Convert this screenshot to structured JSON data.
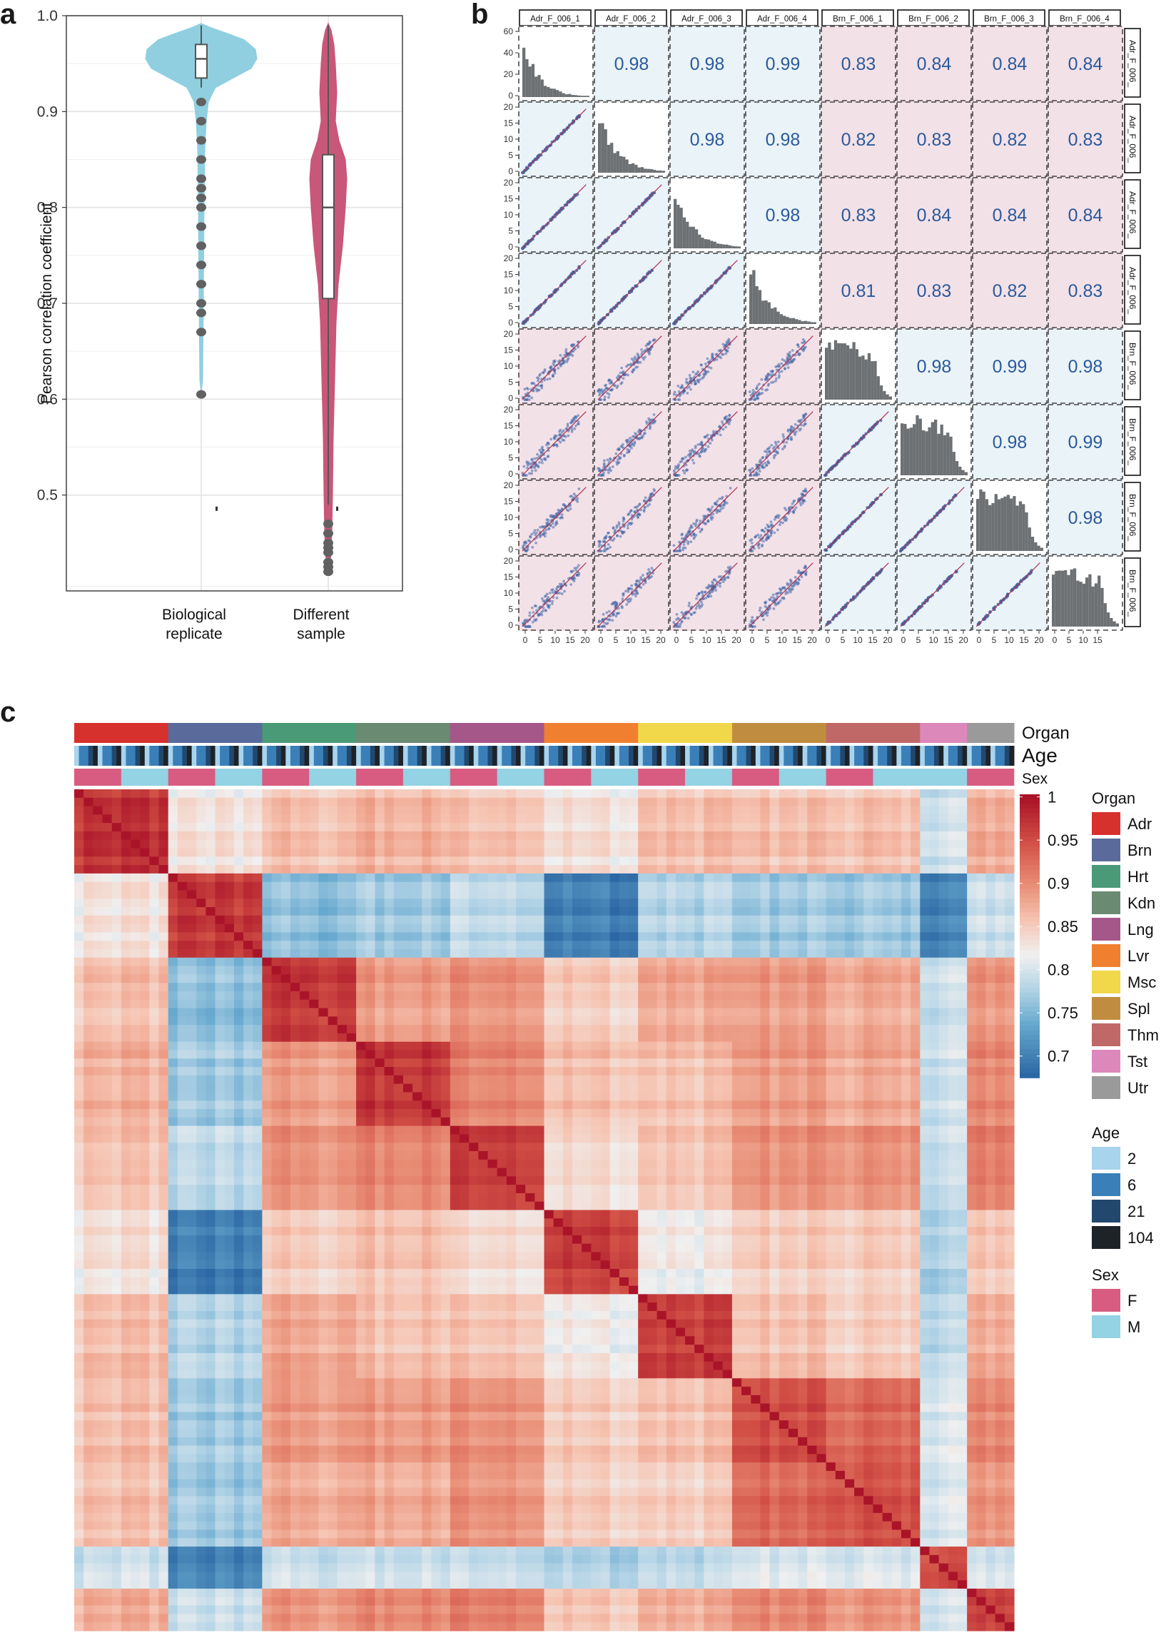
{
  "panels": {
    "a": "a",
    "b": "b",
    "c": "c"
  },
  "chart_data": [
    {
      "panel": "a",
      "type": "violin",
      "ylabel": "Pearson correlation coefficient",
      "ylim": [
        0.4,
        1.0
      ],
      "yticks": [
        "0.5",
        "0.6",
        "0.7",
        "0.8",
        "0.9",
        "1.0"
      ],
      "ytick_values": [
        0.5,
        0.6,
        0.7,
        0.8,
        0.9,
        1.0
      ],
      "grid": true,
      "categories": [
        {
          "label_line1": "Biological",
          "label_line2": "replicate",
          "color": "#8fcfe0",
          "min": 0.605,
          "q1": 0.935,
          "median": 0.955,
          "q3": 0.97,
          "max": 0.99,
          "outliers": [
            0.91,
            0.89,
            0.87,
            0.85,
            0.83,
            0.82,
            0.81,
            0.8,
            0.78,
            0.76,
            0.74,
            0.72,
            0.7,
            0.69,
            0.67,
            0.605
          ]
        },
        {
          "label_line1": "Different",
          "label_line2": "sample",
          "color": "#c9577a",
          "min": 0.42,
          "q1": 0.705,
          "median": 0.8,
          "q3": 0.855,
          "max": 0.99,
          "outliers": [
            0.47,
            0.46,
            0.45,
            0.445,
            0.44,
            0.43,
            0.425,
            0.42
          ]
        }
      ]
    },
    {
      "panel": "b",
      "type": "scatter-matrix",
      "labels": [
        "Adr_F_006_1",
        "Adr_F_006_2",
        "Adr_F_006_3",
        "Adr_F_006_4",
        "Brn_F_006_1",
        "Brn_F_006_2",
        "Brn_F_006_3",
        "Brn_F_006_4"
      ],
      "side_labels": [
        "Adr_F_006_",
        "Adr_F_006_",
        "Adr_F_006_",
        "Adr_F_006_",
        "Brn_F_006_",
        "Brn_F_006_",
        "Brn_F_006_",
        "Brn_F_006_"
      ],
      "correlations": [
        [
          null,
          "0.98",
          "0.98",
          "0.99",
          "0.83",
          "0.84",
          "0.84",
          "0.84"
        ],
        [
          null,
          null,
          "0.98",
          "0.98",
          "0.82",
          "0.83",
          "0.82",
          "0.83"
        ],
        [
          null,
          null,
          null,
          "0.98",
          "0.83",
          "0.84",
          "0.84",
          "0.84"
        ],
        [
          null,
          null,
          null,
          null,
          "0.81",
          "0.83",
          "0.82",
          "0.83"
        ],
        [
          null,
          null,
          null,
          null,
          null,
          "0.98",
          "0.99",
          "0.98"
        ],
        [
          null,
          null,
          null,
          null,
          null,
          null,
          "0.98",
          "0.99"
        ],
        [
          null,
          null,
          null,
          null,
          null,
          null,
          null,
          "0.98"
        ],
        [
          null,
          null,
          null,
          null,
          null,
          null,
          null,
          null
        ]
      ],
      "first_row_yticks": [
        "0",
        "20",
        "40",
        "60"
      ],
      "row_yticks": [
        "0",
        "5",
        "10",
        "15",
        "20"
      ],
      "xticks": [
        "0",
        "5",
        "10",
        "15",
        "20"
      ],
      "last_xticks": [
        "0",
        "5",
        "10",
        "15"
      ],
      "same_color": "#eaf3f8",
      "diff_color": "#f3e1e8",
      "text_color": "#2b5a9b",
      "point_color": "#3f68a8",
      "hist_color": "#6d7173"
    },
    {
      "panel": "c",
      "type": "heatmap",
      "organ_title": "Organ",
      "age_title": "Age",
      "sex_title": "Sex",
      "colorbar_ticks": [
        "1",
        "0.95",
        "0.9",
        "0.85",
        "0.8",
        "0.75",
        "0.7"
      ],
      "colorbar_values": [
        1,
        0.95,
        0.9,
        0.85,
        0.8,
        0.75,
        0.7
      ],
      "organs": [
        {
          "name": "Adr",
          "color": "#d7312e"
        },
        {
          "name": "Brn",
          "color": "#5a6a9a"
        },
        {
          "name": "Hrt",
          "color": "#4a9a78"
        },
        {
          "name": "Kdn",
          "color": "#6a8a72"
        },
        {
          "name": "Lng",
          "color": "#a5578a"
        },
        {
          "name": "Lvr",
          "color": "#f08030"
        },
        {
          "name": "Msc",
          "color": "#f0d84a"
        },
        {
          "name": "Spl",
          "color": "#c08d40"
        },
        {
          "name": "Thm",
          "color": "#c06868"
        },
        {
          "name": "Tst",
          "color": "#dd88bb"
        },
        {
          "name": "Utr",
          "color": "#9a9a9a"
        }
      ],
      "ages": [
        {
          "name": "2",
          "color": "#a8d4ee"
        },
        {
          "name": "6",
          "color": "#3a7fb8"
        },
        {
          "name": "21",
          "color": "#22486e"
        },
        {
          "name": "104",
          "color": "#1e2328"
        }
      ],
      "sexes": [
        {
          "name": "F",
          "color": "#d85c82"
        },
        {
          "name": "M",
          "color": "#93d3e3"
        }
      ]
    }
  ]
}
